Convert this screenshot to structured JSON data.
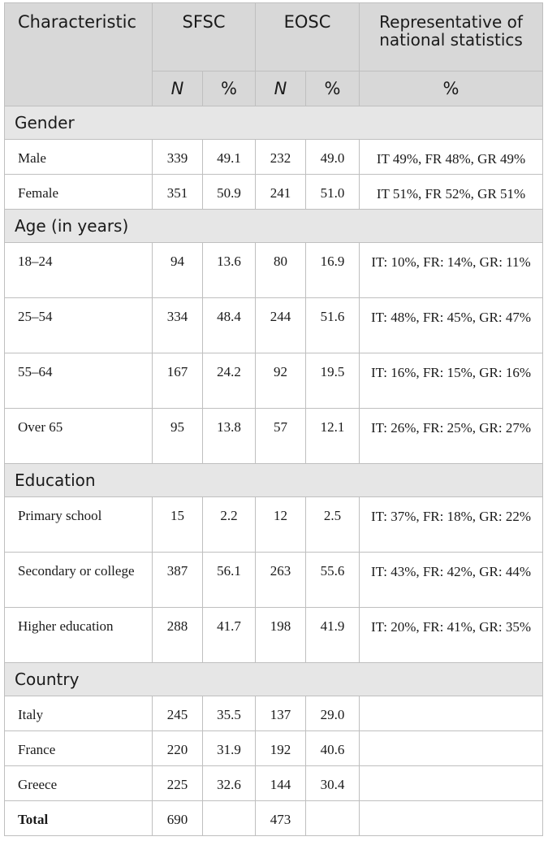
{
  "headers": {
    "characteristic": "Characteristic",
    "sfsc": "SFSC",
    "eosc": "EOSC",
    "rep": "Representative of national statistics",
    "n": "N",
    "pct": "%"
  },
  "sections": [
    {
      "title": "Gender",
      "rows": [
        {
          "label": "Male",
          "sfsc_n": "339",
          "sfsc_pct": "49.1",
          "eosc_n": "232",
          "eosc_pct": "49.0",
          "rep": "IT 49%, FR 48%, GR 49%"
        },
        {
          "label": "Female",
          "sfsc_n": "351",
          "sfsc_pct": "50.9",
          "eosc_n": "241",
          "eosc_pct": "51.0",
          "rep": "IT 51%, FR 52%, GR 51%"
        }
      ]
    },
    {
      "title": "Age (in years)",
      "rows": [
        {
          "label": "18–24",
          "sfsc_n": "94",
          "sfsc_pct": "13.6",
          "eosc_n": "80",
          "eosc_pct": "16.9",
          "rep": "IT: 10%, FR: 14%, GR: 11%"
        },
        {
          "label": "25–54",
          "sfsc_n": "334",
          "sfsc_pct": "48.4",
          "eosc_n": "244",
          "eosc_pct": "51.6",
          "rep": "IT: 48%, FR: 45%, GR: 47%"
        },
        {
          "label": "55–64",
          "sfsc_n": "167",
          "sfsc_pct": "24.2",
          "eosc_n": "92",
          "eosc_pct": "19.5",
          "rep": "IT: 16%, FR: 15%, GR: 16%"
        },
        {
          "label": "Over 65",
          "sfsc_n": "95",
          "sfsc_pct": "13.8",
          "eosc_n": "57",
          "eosc_pct": "12.1",
          "rep": "IT: 26%, FR: 25%, GR: 27%"
        }
      ]
    },
    {
      "title": "Education",
      "rows": [
        {
          "label": "Primary school",
          "sfsc_n": "15",
          "sfsc_pct": "2.2",
          "eosc_n": "12",
          "eosc_pct": "2.5",
          "rep": "IT: 37%, FR: 18%, GR: 22%"
        },
        {
          "label": "Secondary or college",
          "sfsc_n": "387",
          "sfsc_pct": "56.1",
          "eosc_n": "263",
          "eosc_pct": "55.6",
          "rep": "IT: 43%, FR: 42%, GR: 44%"
        },
        {
          "label": "Higher education",
          "sfsc_n": "288",
          "sfsc_pct": "41.7",
          "eosc_n": "198",
          "eosc_pct": "41.9",
          "rep": "IT: 20%, FR: 41%, GR: 35%"
        }
      ]
    },
    {
      "title": "Country",
      "rows": [
        {
          "label": "Italy",
          "sfsc_n": "245",
          "sfsc_pct": "35.5",
          "eosc_n": "137",
          "eosc_pct": "29.0",
          "rep": ""
        },
        {
          "label": "France",
          "sfsc_n": "220",
          "sfsc_pct": "31.9",
          "eosc_n": "192",
          "eosc_pct": "40.6",
          "rep": ""
        },
        {
          "label": "Greece",
          "sfsc_n": "225",
          "sfsc_pct": "32.6",
          "eosc_n": "144",
          "eosc_pct": "30.4",
          "rep": ""
        }
      ]
    }
  ],
  "total": {
    "label": "Total",
    "sfsc_n": "690",
    "sfsc_pct": "",
    "eosc_n": "473",
    "eosc_pct": ""
  }
}
